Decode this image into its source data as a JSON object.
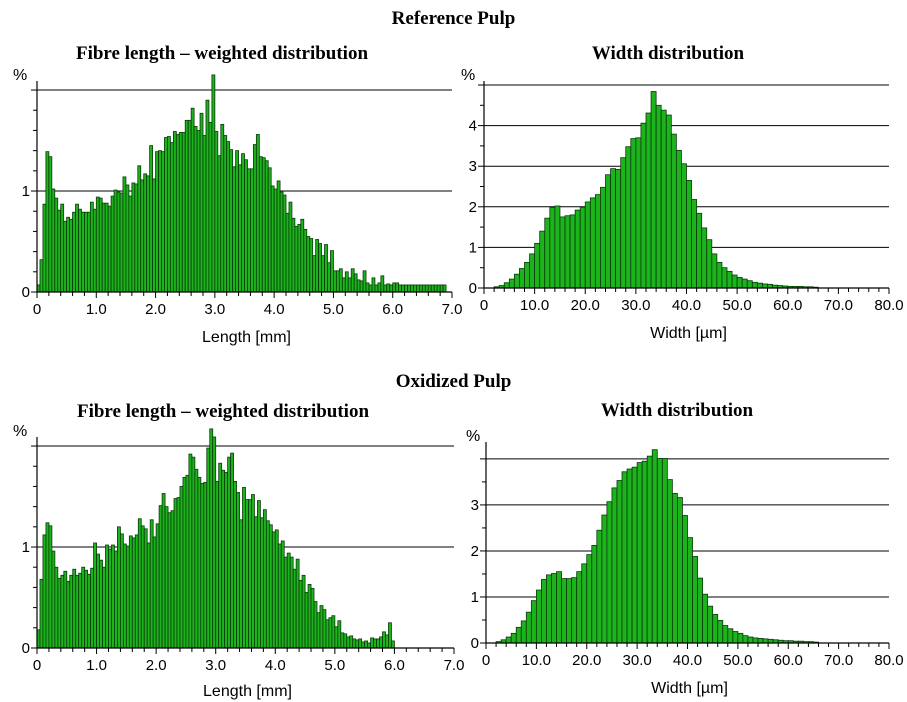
{
  "sections": [
    {
      "title": "Reference Pulp"
    },
    {
      "title": "Oxidized Pulp"
    }
  ],
  "colors": {
    "bar_fill": "#1db31d",
    "bar_edge": "#0a3a0a",
    "axis": "#000000",
    "grid": "#000000"
  },
  "chart_data": [
    {
      "type": "bar",
      "section": "Reference Pulp",
      "title": "Fibre length – weighted distribution",
      "xlabel": "Length [mm]",
      "ylabel": "%",
      "xlim": [
        0,
        7.0
      ],
      "ylim": [
        0,
        2.05
      ],
      "grid_y": [
        1,
        2
      ],
      "y_ticks": [
        "0",
        "1"
      ],
      "x_ticks": [
        "0",
        "1.0",
        "2.0",
        "3.0",
        "4.0",
        "5.0",
        "6.0",
        "7.0"
      ],
      "bin_start": 0.0,
      "bin_width": 0.05,
      "values": [
        0.07,
        0.32,
        0.87,
        1.39,
        1.34,
        1.02,
        0.93,
        0.81,
        0.87,
        0.7,
        0.74,
        0.72,
        0.79,
        0.87,
        0.82,
        0.79,
        0.79,
        0.79,
        0.89,
        0.82,
        0.94,
        0.93,
        0.88,
        0.88,
        0.85,
        0.95,
        1.01,
        0.99,
        0.98,
        1.14,
        1.06,
        0.95,
        1.08,
        1.07,
        1.25,
        1.11,
        1.17,
        1.15,
        1.45,
        1.12,
        1.39,
        1.4,
        1.39,
        1.53,
        1.54,
        1.48,
        1.59,
        1.56,
        1.58,
        1.58,
        1.7,
        1.7,
        1.82,
        1.64,
        1.6,
        1.77,
        1.55,
        1.9,
        1.68,
        2.15,
        1.59,
        1.35,
        1.66,
        1.55,
        1.49,
        1.41,
        1.24,
        1.4,
        1.26,
        1.37,
        1.31,
        1.22,
        1.22,
        1.46,
        1.56,
        1.34,
        1.33,
        1.3,
        1.23,
        1.05,
        1.02,
        1.1,
        0.99,
        0.96,
        0.78,
        0.89,
        0.73,
        0.65,
        0.67,
        0.72,
        0.62,
        0.55,
        0.53,
        0.36,
        0.52,
        0.48,
        0.36,
        0.47,
        0.29,
        0.41,
        0.21,
        0.21,
        0.23,
        0.14,
        0.2,
        0.14,
        0.23,
        0.18,
        0.12,
        0.11,
        0.21,
        0.09,
        0.07,
        0.14,
        0.07,
        0.09,
        0.16,
        0.07,
        0.08,
        0.07,
        0.09,
        0.09,
        0.07,
        0.07,
        0.07,
        0.07,
        0.07,
        0.07,
        0.07,
        0.07,
        0.07,
        0.07,
        0.07,
        0.07,
        0.07,
        0.07,
        0.07,
        0.07
      ]
    },
    {
      "type": "bar",
      "section": "Reference Pulp",
      "title": "Width distribution",
      "xlabel": "Width [µm]",
      "ylabel": "%",
      "xlim": [
        0,
        80.0
      ],
      "ylim": [
        0,
        5.0
      ],
      "grid_y": [
        1,
        2,
        3,
        4,
        5
      ],
      "y_ticks": [
        "0",
        "1",
        "2",
        "3",
        "4"
      ],
      "x_ticks": [
        "0",
        "10.0",
        "20.0",
        "30.0",
        "40.0",
        "50.0",
        "60.0",
        "70.0",
        "80.0"
      ],
      "bin_start": 2.0,
      "bin_width": 1.0,
      "values": [
        0.03,
        0.06,
        0.13,
        0.22,
        0.34,
        0.48,
        0.63,
        0.84,
        1.1,
        1.4,
        1.72,
        1.98,
        2.02,
        1.75,
        1.78,
        1.8,
        1.92,
        1.99,
        2.12,
        2.22,
        2.3,
        2.48,
        2.79,
        2.94,
        2.92,
        3.21,
        3.48,
        3.68,
        3.7,
        4.06,
        4.31,
        4.84,
        4.5,
        4.38,
        4.26,
        3.79,
        3.39,
        3.06,
        2.65,
        2.18,
        1.84,
        1.48,
        1.19,
        0.84,
        0.63,
        0.5,
        0.41,
        0.32,
        0.26,
        0.22,
        0.18,
        0.14,
        0.12,
        0.1,
        0.09,
        0.07,
        0.06,
        0.05,
        0.04,
        0.04,
        0.04,
        0.03,
        0.03,
        0.02
      ]
    },
    {
      "type": "bar",
      "section": "Oxidized Pulp",
      "title": "Fibre length – weighted distribution",
      "xlabel": "Length [mm]",
      "ylabel": "%",
      "xlim": [
        0,
        7.0
      ],
      "ylim": [
        0,
        2.05
      ],
      "grid_y": [
        1,
        2
      ],
      "y_ticks": [
        "0",
        "1"
      ],
      "x_ticks": [
        "0",
        "1.0",
        "2.0",
        "3.0",
        "4.0",
        "5.0",
        "6.0",
        "7.0"
      ],
      "bin_start": 0.0,
      "bin_width": 0.05,
      "values": [
        0.18,
        0.68,
        1.12,
        1.24,
        1.21,
        0.96,
        0.8,
        0.69,
        0.72,
        0.76,
        0.66,
        0.72,
        0.78,
        0.72,
        0.74,
        0.8,
        0.77,
        0.73,
        0.79,
        1.04,
        0.93,
        0.87,
        0.8,
        1.02,
        0.98,
        1.02,
        0.96,
        1.2,
        1.13,
        1.03,
        1.01,
        1.11,
        1.09,
        1.12,
        1.28,
        1.21,
        1.18,
        1.04,
        1.27,
        1.1,
        1.23,
        1.41,
        1.53,
        1.4,
        1.34,
        1.36,
        1.48,
        1.49,
        1.6,
        1.69,
        1.71,
        1.92,
        1.89,
        1.77,
        1.69,
        1.63,
        1.64,
        1.98,
        2.17,
        2.09,
        1.65,
        1.83,
        1.76,
        1.74,
        1.89,
        1.93,
        1.65,
        1.54,
        1.27,
        1.59,
        1.47,
        1.47,
        1.52,
        1.3,
        1.46,
        1.29,
        1.37,
        1.26,
        1.22,
        1.15,
        1.17,
        1.03,
        1.06,
        0.9,
        0.94,
        0.9,
        0.78,
        0.88,
        0.67,
        0.72,
        0.55,
        0.63,
        0.59,
        0.46,
        0.35,
        0.42,
        0.38,
        0.28,
        0.3,
        0.32,
        0.21,
        0.27,
        0.15,
        0.14,
        0.11,
        0.12,
        0.09,
        0.08,
        0.09,
        0.06,
        0.07,
        0.05,
        0.1,
        0.09,
        0.09,
        0.11,
        0.16,
        0.13,
        0.25,
        0.07
      ]
    },
    {
      "type": "bar",
      "section": "Oxidized Pulp",
      "title": "Width distribution",
      "xlabel": "Width [µm]",
      "ylabel": "%",
      "xlim": [
        0,
        80.0
      ],
      "ylim": [
        0,
        4.28
      ],
      "grid_y": [
        1,
        2,
        3,
        4
      ],
      "y_ticks": [
        "0",
        "1",
        "2",
        "3"
      ],
      "x_ticks": [
        "0",
        "10.0",
        "20.0",
        "30.0",
        "40.0",
        "50.0",
        "60.0",
        "70.0",
        "80.0"
      ],
      "bin_start": 2.0,
      "bin_width": 1.0,
      "values": [
        0.03,
        0.07,
        0.13,
        0.21,
        0.34,
        0.48,
        0.67,
        0.92,
        1.15,
        1.38,
        1.48,
        1.51,
        1.55,
        1.4,
        1.4,
        1.42,
        1.55,
        1.72,
        1.92,
        2.12,
        2.45,
        2.78,
        3.07,
        3.37,
        3.53,
        3.72,
        3.78,
        3.82,
        3.92,
        3.95,
        4.06,
        4.2,
        4.01,
        4.01,
        3.55,
        3.25,
        3.16,
        2.77,
        2.29,
        1.88,
        1.41,
        1.06,
        0.8,
        0.62,
        0.49,
        0.38,
        0.31,
        0.25,
        0.21,
        0.16,
        0.13,
        0.11,
        0.1,
        0.09,
        0.08,
        0.07,
        0.06,
        0.05,
        0.05,
        0.04,
        0.04,
        0.03,
        0.03,
        0.02
      ]
    }
  ]
}
